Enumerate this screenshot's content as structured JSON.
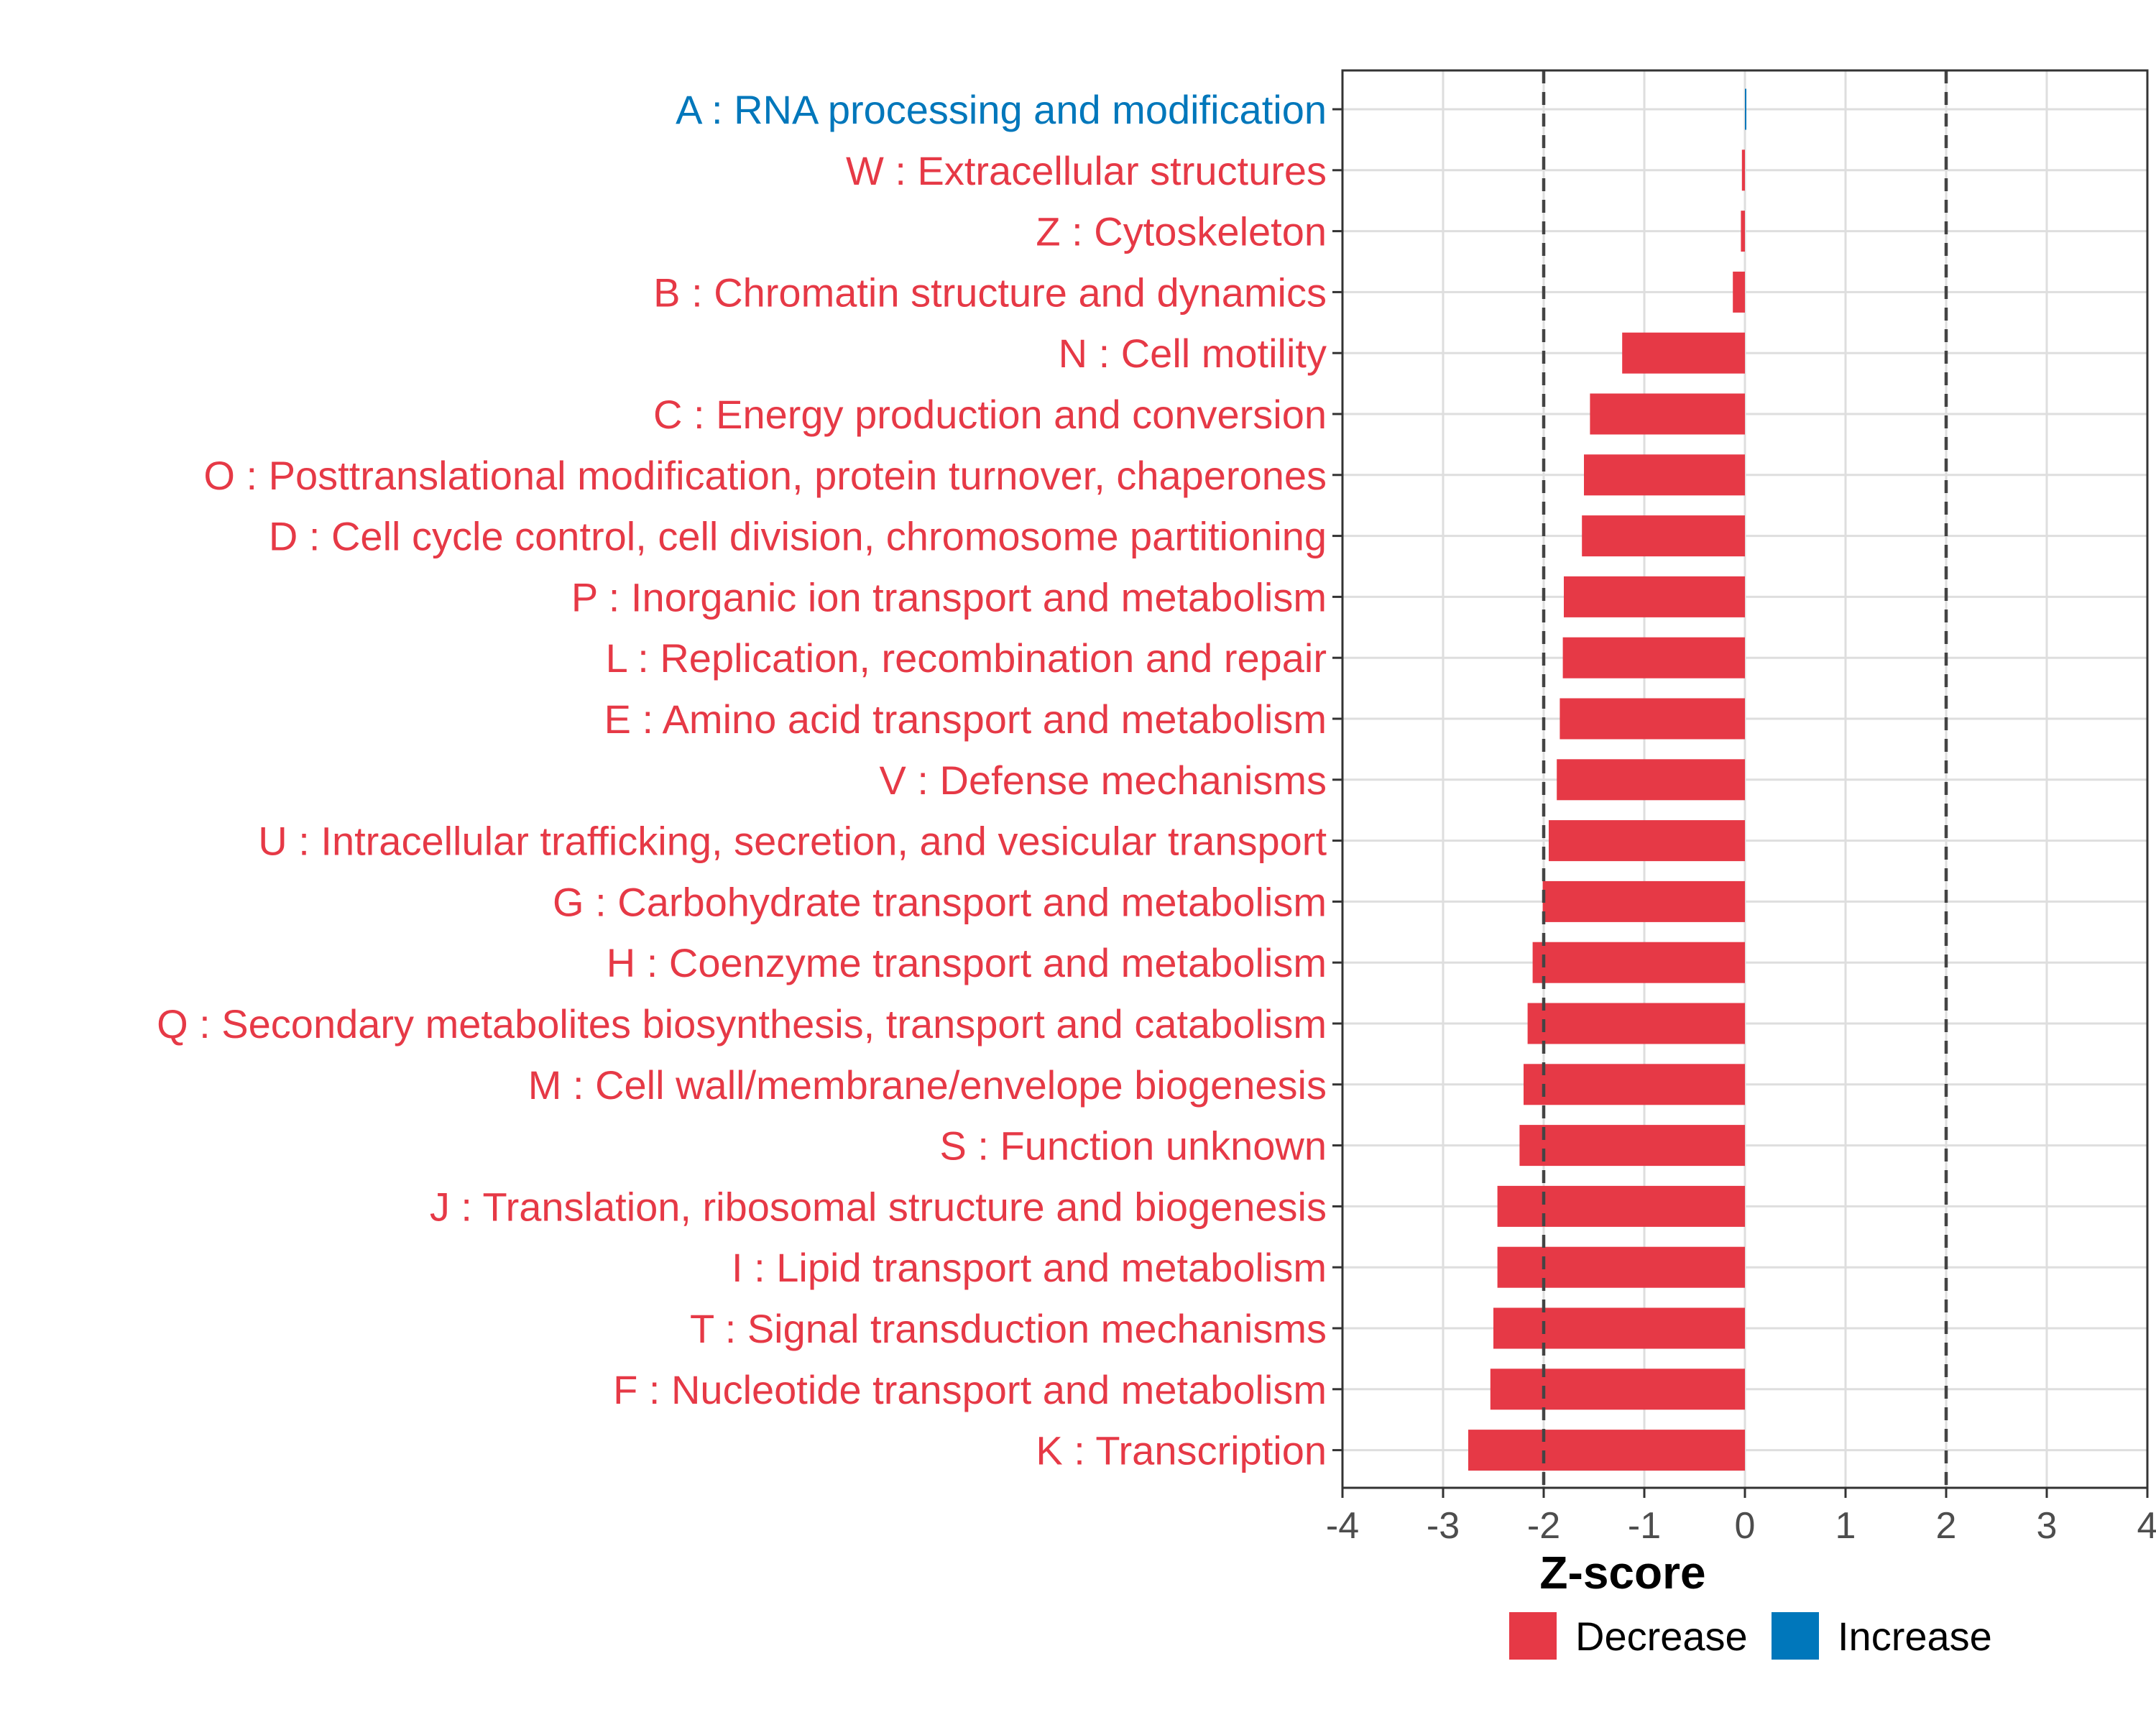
{
  "chart_data": {
    "type": "bar",
    "orientation": "horizontal",
    "xlabel": "Z-score",
    "xlim": [
      -4,
      4
    ],
    "xticks": [
      -4,
      -3,
      -2,
      -1,
      0,
      1,
      2,
      3,
      4
    ],
    "reference_lines": [
      -2,
      2
    ],
    "grid": true,
    "legend_position": "bottom",
    "legend": [
      {
        "name": "Decrease",
        "color": "#e63946"
      },
      {
        "name": "Increase",
        "color": "#0077bb"
      }
    ],
    "categories": [
      {
        "label": "A : RNA processing and modification",
        "value": 0.01,
        "group": "Increase"
      },
      {
        "label": "W : Extracellular structures",
        "value": -0.03,
        "group": "Decrease"
      },
      {
        "label": "Z : Cytoskeleton",
        "value": -0.04,
        "group": "Decrease"
      },
      {
        "label": "B : Chromatin structure and dynamics",
        "value": -0.12,
        "group": "Decrease"
      },
      {
        "label": "N : Cell motility",
        "value": -1.22,
        "group": "Decrease"
      },
      {
        "label": "C : Energy production and conversion",
        "value": -1.54,
        "group": "Decrease"
      },
      {
        "label": "O : Posttranslational modification, protein turnover, chaperones",
        "value": -1.6,
        "group": "Decrease"
      },
      {
        "label": "D : Cell cycle control, cell division, chromosome partitioning",
        "value": -1.62,
        "group": "Decrease"
      },
      {
        "label": "P : Inorganic ion transport and metabolism",
        "value": -1.8,
        "group": "Decrease"
      },
      {
        "label": "L : Replication, recombination and repair",
        "value": -1.81,
        "group": "Decrease"
      },
      {
        "label": "E : Amino acid transport and metabolism",
        "value": -1.84,
        "group": "Decrease"
      },
      {
        "label": "V : Defense mechanisms",
        "value": -1.87,
        "group": "Decrease"
      },
      {
        "label": "U : Intracellular trafficking, secretion, and vesicular transport",
        "value": -1.95,
        "group": "Decrease"
      },
      {
        "label": "G : Carbohydrate transport and metabolism",
        "value": -2.01,
        "group": "Decrease"
      },
      {
        "label": "H : Coenzyme transport and metabolism",
        "value": -2.11,
        "group": "Decrease"
      },
      {
        "label": "Q : Secondary metabolites biosynthesis, transport and catabolism",
        "value": -2.16,
        "group": "Decrease"
      },
      {
        "label": "M : Cell wall/membrane/envelope biogenesis",
        "value": -2.2,
        "group": "Decrease"
      },
      {
        "label": "S : Function unknown",
        "value": -2.24,
        "group": "Decrease"
      },
      {
        "label": "J : Translation, ribosomal structure and biogenesis",
        "value": -2.46,
        "group": "Decrease"
      },
      {
        "label": "I : Lipid transport and metabolism",
        "value": -2.46,
        "group": "Decrease"
      },
      {
        "label": "T : Signal transduction mechanisms",
        "value": -2.5,
        "group": "Decrease"
      },
      {
        "label": "F : Nucleotide transport and metabolism",
        "value": -2.53,
        "group": "Decrease"
      },
      {
        "label": "K : Transcription",
        "value": -2.75,
        "group": "Decrease"
      }
    ]
  }
}
